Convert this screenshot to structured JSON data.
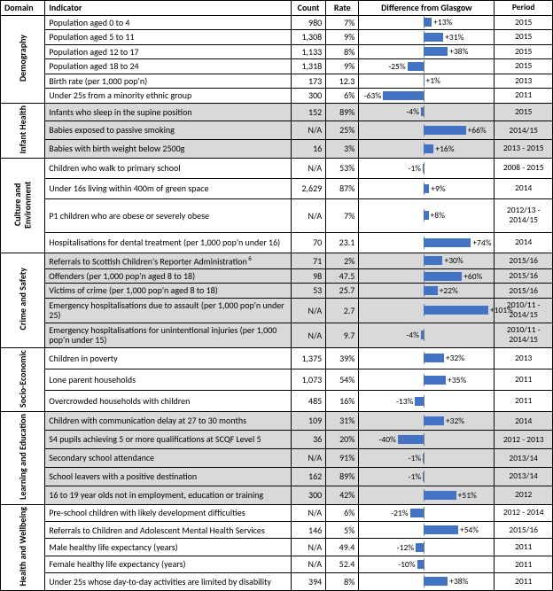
{
  "chart": {
    "bar_color": "#4472c4",
    "baseline_color": "#7f7f7f",
    "range": [
      -100,
      110
    ],
    "baseline": 0
  },
  "columns": {
    "domain": "Domain",
    "indicator": "Indicator",
    "count": "Count",
    "rate": "Rate",
    "diff": "Difference from Glasgow",
    "period": "Period"
  },
  "domains": [
    {
      "name": "Demography",
      "shaded": false,
      "rows": [
        {
          "indicator": "Population aged 0 to 4",
          "count": "980",
          "rate": "7%",
          "diff": 13,
          "diff_label": "+13%",
          "period": "2015"
        },
        {
          "indicator": "Population aged 5 to 11",
          "count": "1,308",
          "rate": "9%",
          "diff": 31,
          "diff_label": "+31%",
          "period": "2015"
        },
        {
          "indicator": "Population aged 12 to 17",
          "count": "1,133",
          "rate": "8%",
          "diff": 38,
          "diff_label": "+38%",
          "period": "2015"
        },
        {
          "indicator": "Population aged 18 to 24",
          "count": "1,318",
          "rate": "9%",
          "diff": -25,
          "diff_label": "-25%",
          "period": "2015"
        },
        {
          "indicator": "Birth rate (per 1,000 pop'n)",
          "count": "173",
          "rate": "12.3",
          "diff": 1,
          "diff_label": "+1%",
          "period": "2013"
        },
        {
          "indicator": "Under 25s from a minority ethnic group",
          "count": "300",
          "rate": "6%",
          "diff": -63,
          "diff_label": "-63%",
          "period": "2011"
        }
      ]
    },
    {
      "name": "Infant Health",
      "shaded": true,
      "rows": [
        {
          "indicator": "Infants who sleep in the supine position",
          "count": "152",
          "rate": "89%",
          "diff": -4,
          "diff_label": "-4%",
          "period": "2015"
        },
        {
          "indicator": "Babies exposed to passive smoking",
          "count": "N/A",
          "rate": "25%",
          "diff": 66,
          "diff_label": "+66%",
          "period": "2014/15"
        },
        {
          "indicator": "Babies with birth weight below 2500g",
          "count": "16",
          "rate": "3%",
          "diff": 16,
          "diff_label": "+16%",
          "period": "2013 - 2015"
        }
      ]
    },
    {
      "name": "Culture and Environment",
      "shaded": false,
      "rows": [
        {
          "indicator": "Children who walk to primary school",
          "count": "N/A",
          "rate": "53%",
          "diff": -1,
          "diff_label": "-1%",
          "period": "2008 - 2015"
        },
        {
          "indicator": "Under 16s living within 400m of green space",
          "count": "2,629",
          "rate": "87%",
          "diff": 9,
          "diff_label": "+9%",
          "period": "2014"
        },
        {
          "indicator": "P1 children who are obese or severely obese",
          "count": "N/A",
          "rate": "7%",
          "diff": 8,
          "diff_label": "+8%",
          "period": "2012/13 - 2014/15"
        },
        {
          "indicator": "Hospitalisations for dental treatment (per 1,000 pop'n under 16)",
          "count": "70",
          "rate": "23.1",
          "diff": 74,
          "diff_label": "+74%",
          "period": "2014"
        }
      ]
    },
    {
      "name": "Crime and Safety",
      "shaded": true,
      "rows": [
        {
          "indicator": "Referrals to Scottish Children's Reporter Administration",
          "sup": "6",
          "count": "71",
          "rate": "2%",
          "diff": 30,
          "diff_label": "+30%",
          "period": "2015/16"
        },
        {
          "indicator": "Offenders (per 1,000 pop'n aged 8 to 18)",
          "count": "98",
          "rate": "47.5",
          "diff": 60,
          "diff_label": "+60%",
          "period": "2015/16"
        },
        {
          "indicator": "Victims of crime (per 1,000 pop'n aged 8 to 18)",
          "count": "53",
          "rate": "25.7",
          "diff": 22,
          "diff_label": "+22%",
          "period": "2015/16"
        },
        {
          "indicator": "Emergency hospitalisations due to assault (per 1,000 pop'n under 25)",
          "count": "N/A",
          "rate": "2.7",
          "diff": 101,
          "diff_label": "+101%",
          "period": "2010/11 - 2014/15"
        },
        {
          "indicator": "Emergency hospitalisations for unintentional injuries (per 1,000 pop'n under 15)",
          "count": "N/A",
          "rate": "9.7",
          "diff": -4,
          "diff_label": "-4%",
          "period": "2010/11 - 2014/15"
        }
      ]
    },
    {
      "name": "Socio-Economic",
      "shaded": false,
      "rows": [
        {
          "indicator": "Children in poverty",
          "count": "1,375",
          "rate": "39%",
          "diff": 32,
          "diff_label": "+32%",
          "period": "2013"
        },
        {
          "indicator": "Lone parent households",
          "count": "1,073",
          "rate": "54%",
          "diff": 35,
          "diff_label": "+35%",
          "period": "2011"
        },
        {
          "indicator": "Overcrowded households with children",
          "count": "485",
          "rate": "16%",
          "diff": -13,
          "diff_label": "-13%",
          "period": "2011"
        }
      ]
    },
    {
      "name": "Learning and Education",
      "shaded": true,
      "rows": [
        {
          "indicator": "Children with communication delay at 27 to 30 months",
          "count": "109",
          "rate": "31%",
          "diff": 32,
          "diff_label": "+32%",
          "period": "2014"
        },
        {
          "indicator": "S4 pupils achieving 5 or more qualifications at SCQF Level 5",
          "count": "36",
          "rate": "20%",
          "diff": -40,
          "diff_label": "-40%",
          "period": "2012 - 2013"
        },
        {
          "indicator": "Secondary school attendance",
          "count": "N/A",
          "rate": "91%",
          "diff": -1,
          "diff_label": "-1%",
          "period": "2013/14"
        },
        {
          "indicator": "School leavers with a positive destination",
          "count": "162",
          "rate": "89%",
          "diff": -1,
          "diff_label": "-1%",
          "period": "2013/14"
        },
        {
          "indicator": "16 to 19 year olds not in employment, education or training",
          "count": "300",
          "rate": "42%",
          "diff": 51,
          "diff_label": "+51%",
          "period": "2012"
        }
      ]
    },
    {
      "name": "Health and Wellbeing",
      "shaded": false,
      "rows": [
        {
          "indicator": "Pre-school children with likely development difficulties",
          "count": "N/A",
          "rate": "6%",
          "diff": -21,
          "diff_label": "-21%",
          "period": "2012 - 2014"
        },
        {
          "indicator": "Referrals to Children and Adolescent Mental Health Services",
          "count": "146",
          "rate": "5%",
          "diff": 54,
          "diff_label": "+54%",
          "period": "2015/16"
        },
        {
          "indicator": "Male healthy life expectancy (years)",
          "count": "N/A",
          "rate": "49.4",
          "diff": -12,
          "diff_label": "-12%",
          "period": "2011"
        },
        {
          "indicator": "Female healthy life expectancy (years)",
          "count": "N/A",
          "rate": "52.4",
          "diff": -10,
          "diff_label": "-10%",
          "period": "2011"
        },
        {
          "indicator": "Under 25s whose day-to-day activities are limited by disability",
          "count": "394",
          "rate": "8%",
          "diff": 38,
          "diff_label": "+38%",
          "period": "2011"
        }
      ]
    }
  ]
}
